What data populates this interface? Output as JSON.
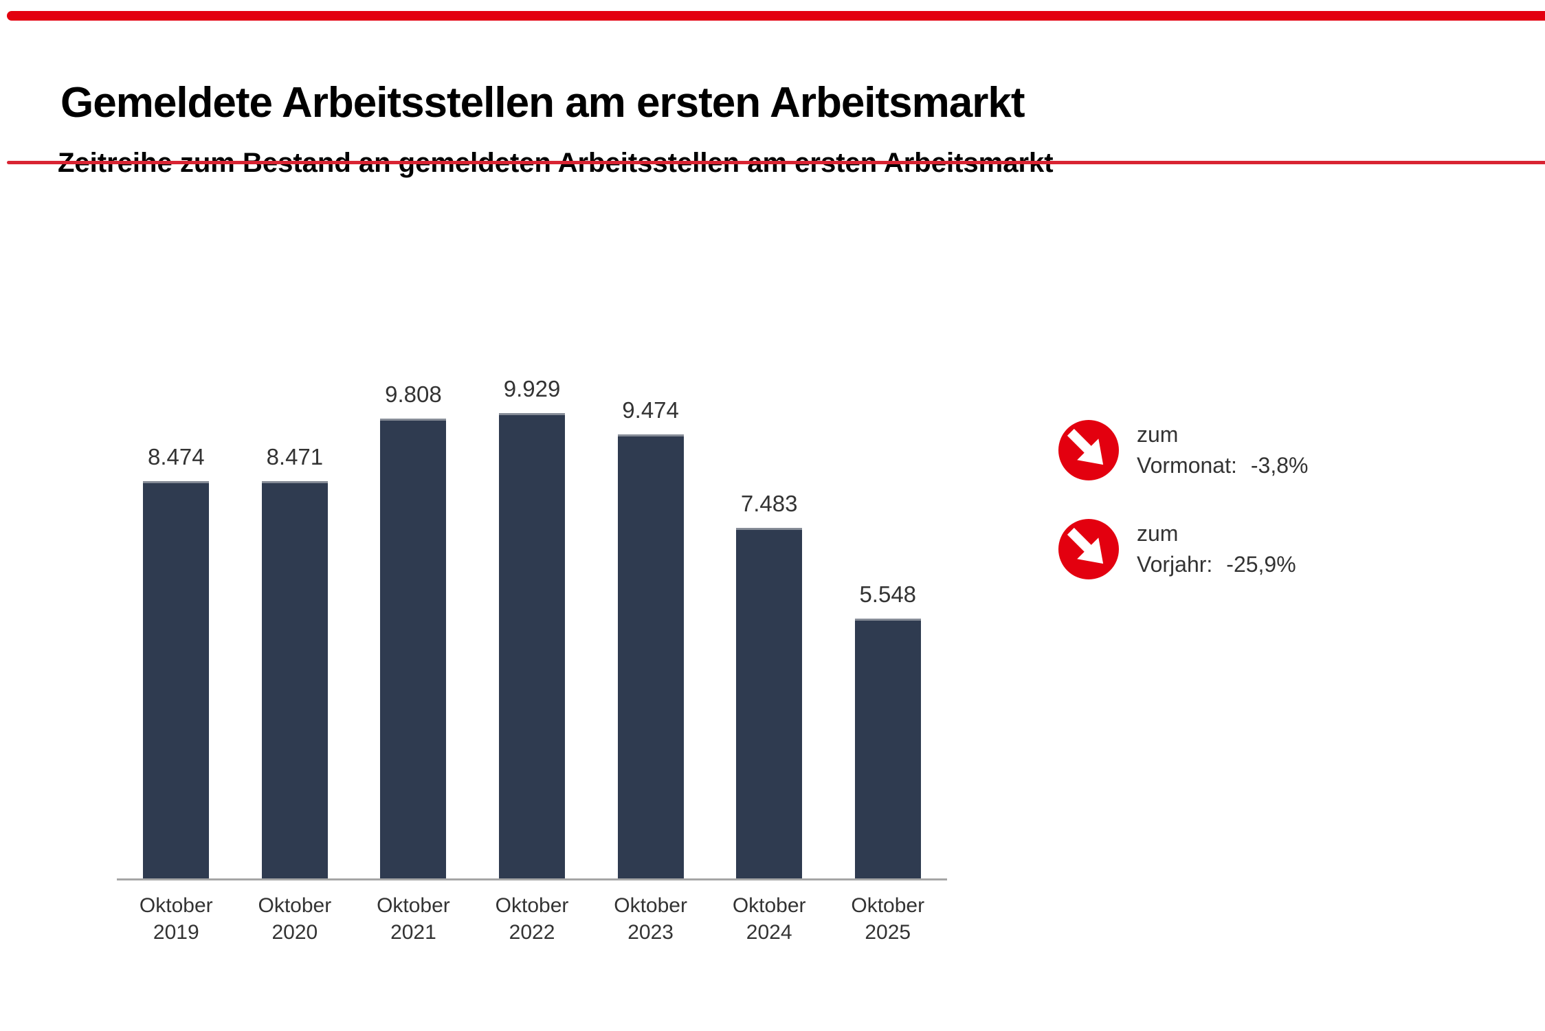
{
  "header": {
    "title": "Gemeldete Arbeitsstellen am ersten Arbeitsmarkt",
    "subtitle": "Zeitreihe zum Bestand an gemeldeten Arbeitsstellen am ersten Arbeitsmarkt"
  },
  "chart_data": {
    "type": "bar",
    "categories": [
      "Oktober 2019",
      "Oktober 2020",
      "Oktober 2021",
      "Oktober 2022",
      "Oktober 2023",
      "Oktober 2024",
      "Oktober 2025"
    ],
    "category_lines": [
      [
        "Oktober",
        "2019"
      ],
      [
        "Oktober",
        "2020"
      ],
      [
        "Oktober",
        "2021"
      ],
      [
        "Oktober",
        "2022"
      ],
      [
        "Oktober",
        "2023"
      ],
      [
        "Oktober",
        "2024"
      ],
      [
        "Oktober",
        "2025"
      ]
    ],
    "values": [
      8474,
      8471,
      9808,
      9929,
      9474,
      7483,
      5548
    ],
    "value_labels": [
      "8.474",
      "8.471",
      "9.808",
      "9.929",
      "9.474",
      "7.483",
      "5.548"
    ],
    "title": "",
    "xlabel": "",
    "ylabel": "",
    "ylim": [
      0,
      10500
    ],
    "grid": false,
    "legend_position": "right",
    "bar_color": "#2f3b50"
  },
  "kpis": [
    {
      "icon": "arrow-down-right",
      "prefix": "zum",
      "label": "Vormonat:",
      "value": "-3,8%"
    },
    {
      "icon": "arrow-down-right",
      "prefix": "zum",
      "label": "Vorjahr:",
      "value": "-25,9%"
    }
  ],
  "colors": {
    "accent_red": "#e3000f",
    "divider_red": "#d92433",
    "bar": "#2f3b50",
    "axis_line": "#a6a6a6",
    "label_text": "#333333"
  }
}
